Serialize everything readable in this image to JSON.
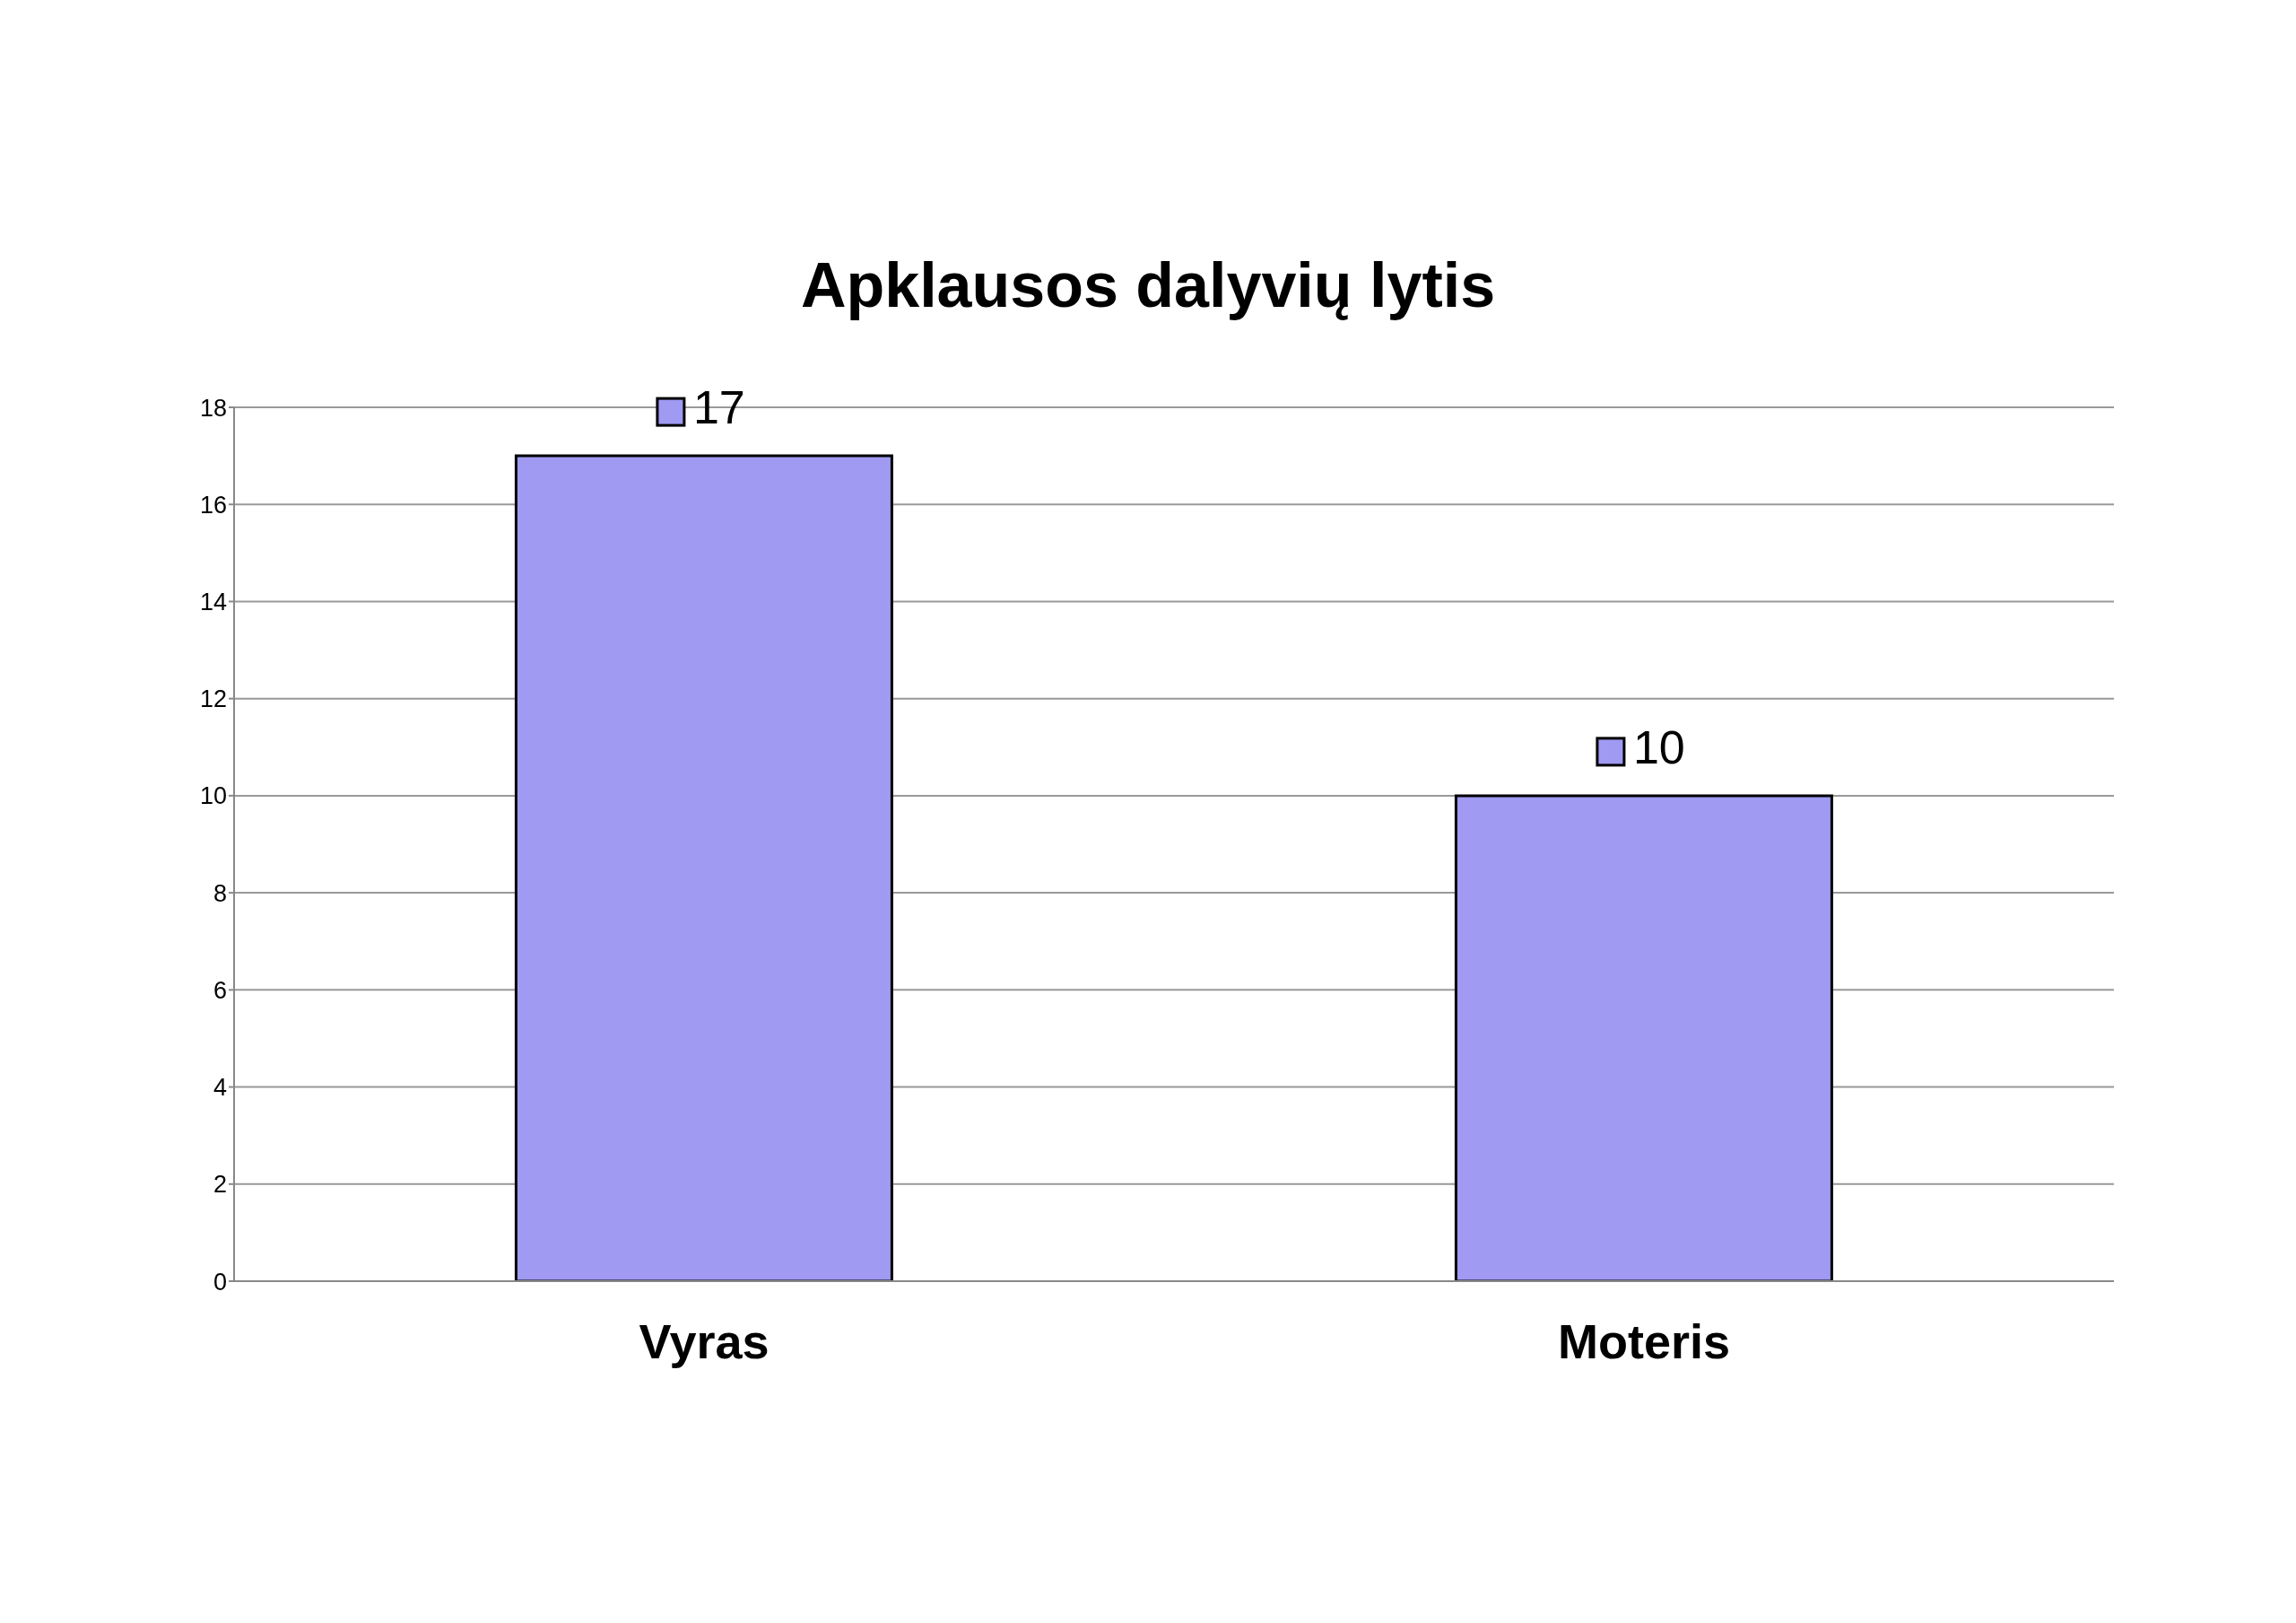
{
  "chart_data": {
    "type": "bar",
    "title": "Apklausos dalyvių lytis",
    "categories": [
      "Vyras",
      "Moteris"
    ],
    "values": [
      17,
      10
    ],
    "color": "#a09af2",
    "ylim": [
      0,
      18
    ],
    "yticks": [
      0,
      2,
      4,
      6,
      8,
      10,
      12,
      14,
      16,
      18
    ],
    "grid": "y",
    "data_labels": true
  }
}
